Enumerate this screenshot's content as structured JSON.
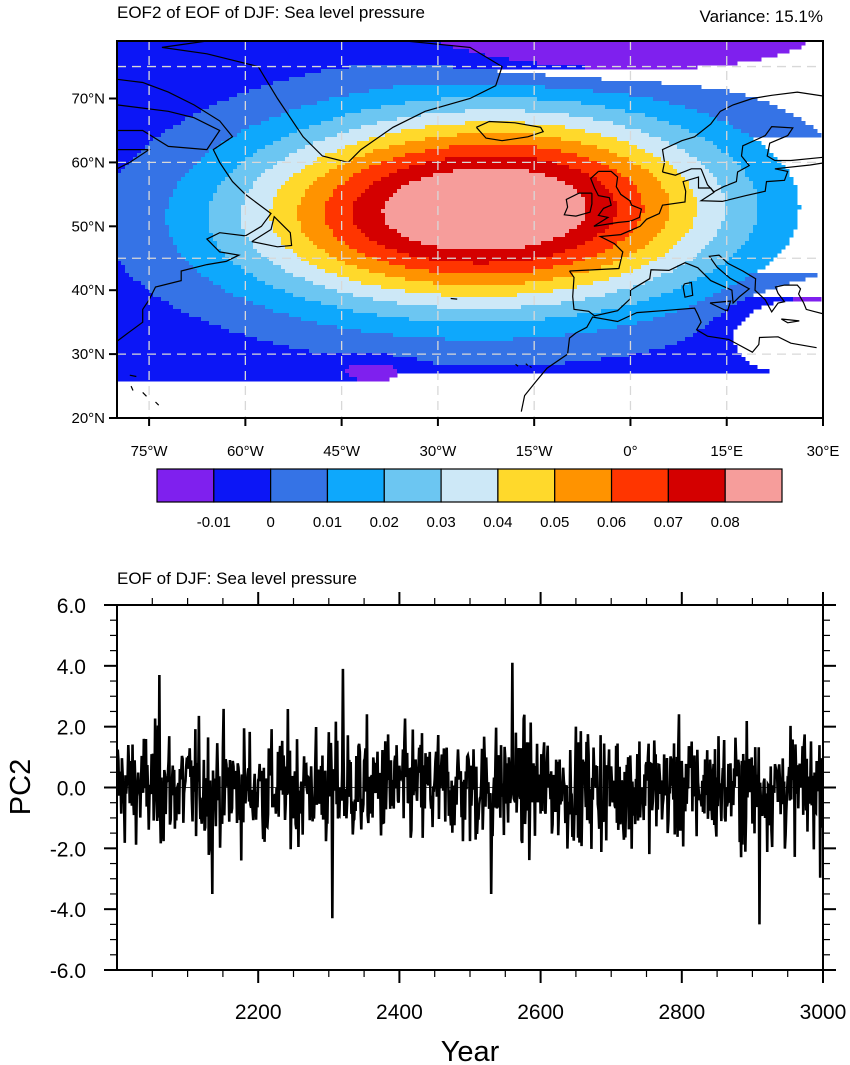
{
  "chart_data": [
    {
      "type": "heatmap",
      "subtype": "filled-contour-map",
      "title": "EOF2 of EOF of DJF: Sea level pressure",
      "right_title": "Variance: 15.1%",
      "lon_range": [
        -80,
        30
      ],
      "lat_range": [
        20,
        79
      ],
      "x_ticks": [
        {
          "value": -75,
          "label": "75°W"
        },
        {
          "value": -60,
          "label": "60°W"
        },
        {
          "value": -45,
          "label": "45°W"
        },
        {
          "value": -30,
          "label": "30°W"
        },
        {
          "value": -15,
          "label": "15°W"
        },
        {
          "value": 0,
          "label": "0°"
        },
        {
          "value": 15,
          "label": "15°E"
        },
        {
          "value": 30,
          "label": "30°E"
        }
      ],
      "y_ticks": [
        {
          "value": 20,
          "label": "20°N"
        },
        {
          "value": 30,
          "label": "30°N"
        },
        {
          "value": 40,
          "label": "40°N"
        },
        {
          "value": 50,
          "label": "50°N"
        },
        {
          "value": 60,
          "label": "60°N"
        },
        {
          "value": 70,
          "label": "70°N"
        }
      ],
      "gridlines_lon": [
        -75,
        -60,
        -45,
        -30,
        -15,
        0,
        15
      ],
      "gridlines_lat": [
        30,
        45,
        60,
        75
      ],
      "colorbar": {
        "colors": [
          "#7f20ee",
          "#0c16f6",
          "#3573e6",
          "#0ea8fc",
          "#6cc6f2",
          "#cde8f7",
          "#ffd92b",
          "#ff9300",
          "#ff3500",
          "#d40000",
          "#f69d9b"
        ],
        "labels": [
          "-0.01",
          "0",
          "0.01",
          "0.02",
          "0.03",
          "0.04",
          "0.05",
          "0.06",
          "0.07",
          "0.08"
        ]
      },
      "field": {
        "description_center_lon": -19,
        "description_center_lat": 53,
        "max_value": 0.085,
        "min_value": -0.015
      }
    },
    {
      "type": "line",
      "title": "EOF of DJF: Sea level pressure",
      "xlabel": "Year",
      "ylabel": "PC2",
      "xlim": [
        2000,
        3000
      ],
      "ylim": [
        -6,
        6
      ],
      "x_ticks": [
        2200,
        2400,
        2600,
        2800,
        3000
      ],
      "x_tick_labels": [
        "2200",
        "2400",
        "2600",
        "2800",
        "3000"
      ],
      "y_ticks": [
        -6,
        -4,
        -2,
        0,
        2,
        4,
        6
      ],
      "y_tick_labels": [
        "-6.0",
        "-4.0",
        "-2.0",
        "0.0",
        "2.0",
        "4.0",
        "6.0"
      ],
      "series": [
        {
          "name": "PC2",
          "color": "#000000",
          "n_points": 1000,
          "x_start": 2001,
          "x_step": 1,
          "noted_extremes": [
            {
              "x": 2060,
              "y": 3.7
            },
            {
              "x": 2135,
              "y": -3.5
            },
            {
              "x": 2305,
              "y": -4.3
            },
            {
              "x": 2320,
              "y": 3.9
            },
            {
              "x": 2530,
              "y": -3.5
            },
            {
              "x": 2560,
              "y": 4.1
            },
            {
              "x": 2910,
              "y": -4.5
            }
          ],
          "std": 1.3
        }
      ]
    }
  ]
}
